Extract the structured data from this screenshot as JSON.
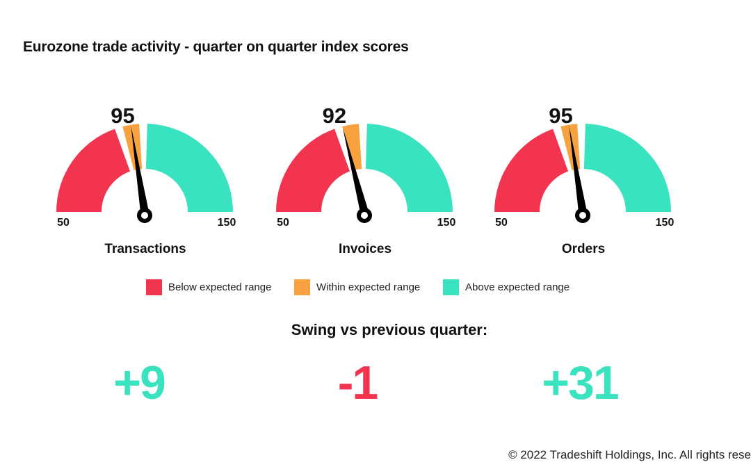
{
  "colors": {
    "below": "#f2344f",
    "within": "#f7a23f",
    "above": "#3ae3c0",
    "needle": "#000000"
  },
  "chart_data": {
    "type": "gauge",
    "title": "Eurozone trade activity - quarter on quarter index scores",
    "range": {
      "min": 50,
      "max": 150,
      "min_label": "50",
      "max_label": "150"
    },
    "bands": [
      {
        "name": "Below expected range",
        "from": 50,
        "to": 90,
        "color_key": "below"
      },
      {
        "name": "Within expected range",
        "from": 91,
        "to": 99,
        "color_key": "within"
      },
      {
        "name": "Above expected range",
        "from": 100,
        "to": 150,
        "color_key": "above"
      }
    ],
    "gauges": [
      {
        "label": "Transactions",
        "value": 95,
        "value_label": "95",
        "swing": 9,
        "swing_label": "+9",
        "swing_color_key": "above"
      },
      {
        "label": "Invoices",
        "value": 92,
        "value_label": "92",
        "swing": -1,
        "swing_label": "-1",
        "swing_color_key": "below"
      },
      {
        "label": "Orders",
        "value": 95,
        "value_label": "95",
        "swing": 31,
        "swing_label": "+31",
        "swing_color_key": "above"
      }
    ]
  },
  "legend": {
    "below": "Below expected range",
    "within": "Within expected range",
    "above": "Above expected range"
  },
  "swing_title": "Swing vs previous quarter:",
  "copyright": "© 2022 Tradeshift Holdings, Inc. All rights rese"
}
